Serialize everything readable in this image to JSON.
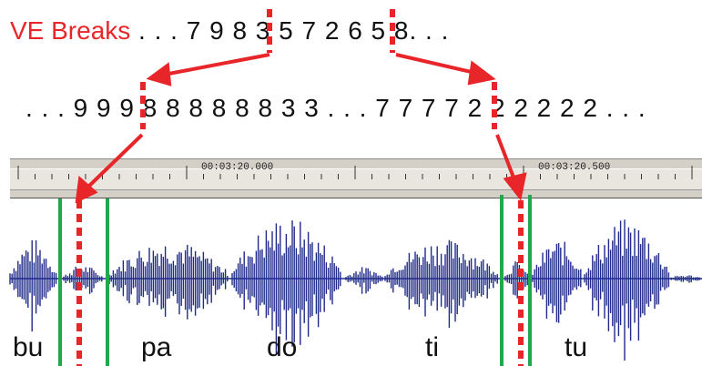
{
  "header": {
    "label": "VE Breaks",
    "top_sequence": " . . . 7  9 8  3  5  7 2  6  5  8. . ."
  },
  "frame_sequence": ". . . 9 9 9 8 8 8 8 8 8 3 3 . . . 7 7 7 7 2 2 2 2 2 2 . . .",
  "timeline": {
    "timecode_1": "00:03:20.000",
    "timecode_2": "00:03:20.500"
  },
  "syllables": [
    "bu",
    "pa",
    "do",
    "ti",
    "tu"
  ],
  "colors": {
    "break_marker": "#e8262a",
    "boundary_line": "#22a84a",
    "waveform": "#1f2a8a",
    "ruler": "#d4d0c8"
  }
}
